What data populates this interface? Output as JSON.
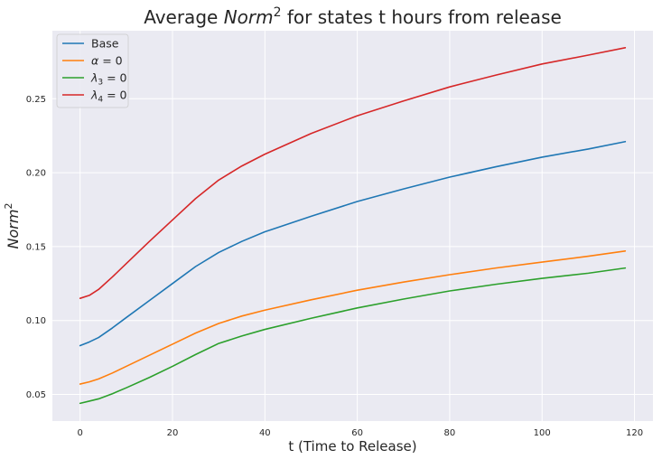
{
  "chart_data": {
    "type": "line",
    "title_prefix": "Average ",
    "title_math": "Norm",
    "title_sup": "2",
    "title_suffix": " for states t hours from release",
    "xlabel": "t (Time to Release)",
    "ylabel_math": "Norm",
    "ylabel_sup": "2",
    "xlim": [
      -6,
      124
    ],
    "ylim": [
      0.032,
      0.296
    ],
    "xticks": [
      0,
      20,
      40,
      60,
      80,
      100,
      120
    ],
    "yticks": [
      0.05,
      0.1,
      0.15,
      0.2,
      0.25
    ],
    "ytick_labels": [
      "0.05",
      "0.10",
      "0.15",
      "0.20",
      "0.25"
    ],
    "grid": true,
    "legend_position": "top-left",
    "x": [
      0,
      2,
      4,
      7,
      10,
      15,
      20,
      25,
      30,
      35,
      40,
      50,
      60,
      70,
      80,
      90,
      100,
      110,
      118
    ],
    "series": [
      {
        "name": "Base",
        "label_italic": "",
        "label_sub": "",
        "label_rest": "Base",
        "color": "#1f77b4",
        "values": [
          0.083,
          0.0855,
          0.0885,
          0.095,
          0.102,
          0.1135,
          0.125,
          0.1365,
          0.146,
          0.1535,
          0.16,
          0.1705,
          0.1805,
          0.189,
          0.197,
          0.204,
          0.2105,
          0.216,
          0.221
        ]
      },
      {
        "name": "α = 0",
        "label_italic": "α",
        "label_sub": "",
        "label_rest": " = 0",
        "color": "#ff7f0e",
        "values": [
          0.057,
          0.0585,
          0.0605,
          0.0645,
          0.069,
          0.0765,
          0.084,
          0.0915,
          0.098,
          0.103,
          0.107,
          0.114,
          0.1205,
          0.126,
          0.131,
          0.1355,
          0.1395,
          0.1435,
          0.147
        ]
      },
      {
        "name": "λ3 = 0",
        "label_italic": "λ",
        "label_sub": "3",
        "label_rest": " = 0",
        "color": "#2ca02c",
        "values": [
          0.044,
          0.0455,
          0.047,
          0.0505,
          0.0545,
          0.0615,
          0.069,
          0.077,
          0.0845,
          0.0895,
          0.094,
          0.1015,
          0.1085,
          0.1145,
          0.12,
          0.1245,
          0.1285,
          0.132,
          0.1355
        ]
      },
      {
        "name": "λ4 = 0",
        "label_italic": "λ",
        "label_sub": "4",
        "label_rest": " = 0",
        "color": "#d62728",
        "values": [
          0.115,
          0.117,
          0.121,
          0.1295,
          0.1385,
          0.1535,
          0.168,
          0.1825,
          0.195,
          0.2045,
          0.2125,
          0.2265,
          0.2385,
          0.2485,
          0.258,
          0.266,
          0.2735,
          0.2795,
          0.2845
        ]
      }
    ]
  }
}
